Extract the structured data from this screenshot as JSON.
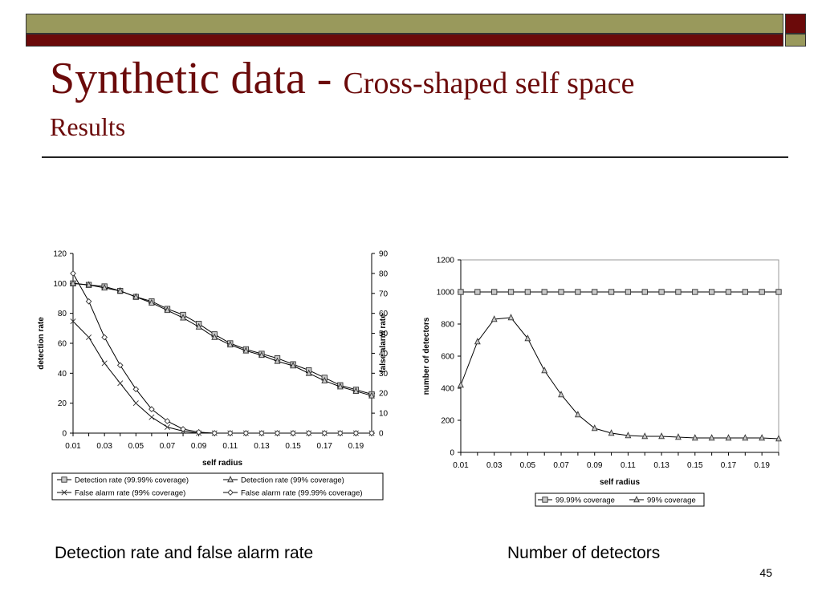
{
  "slide": {
    "title_main": "Synthetic data - ",
    "title_sub": "Cross-shaped self space",
    "subtitle": "Results",
    "caption_left": "Detection rate and false alarm rate",
    "caption_right": "Number of detectors",
    "page_number": "45",
    "colors": {
      "title": "#6b0a0a",
      "olive": "#99995c",
      "maroon": "#6b0a0a"
    }
  },
  "chart_data": [
    {
      "type": "line",
      "xlabel": "self radius",
      "ylabel": "detection rate",
      "y2label": "false alarm rate",
      "x": [
        0.01,
        0.02,
        0.03,
        0.04,
        0.05,
        0.06,
        0.07,
        0.08,
        0.09,
        0.1,
        0.11,
        0.12,
        0.13,
        0.14,
        0.15,
        0.16,
        0.17,
        0.18,
        0.19,
        0.2
      ],
      "xticks": [
        "0.01",
        "0.03",
        "0.05",
        "0.07",
        "0.09",
        "0.11",
        "0.13",
        "0.15",
        "0.17",
        "0.19"
      ],
      "ylim": [
        0,
        120
      ],
      "yticks": [
        0,
        20,
        40,
        60,
        80,
        100,
        120
      ],
      "y2lim": [
        0,
        90
      ],
      "y2ticks": [
        0,
        10,
        20,
        30,
        40,
        50,
        60,
        70,
        80,
        90
      ],
      "grid": false,
      "legend_position": "bottom",
      "series": [
        {
          "name": "Detection rate (99.99% coverage)",
          "axis": "left",
          "marker": "square",
          "values": [
            100,
            99,
            98,
            95,
            91,
            88,
            83,
            79,
            73,
            66,
            60,
            56,
            53,
            50,
            46,
            42,
            37,
            32,
            29,
            26
          ]
        },
        {
          "name": "Detection rate (99% coverage)",
          "axis": "left",
          "marker": "triangle",
          "values": [
            100,
            99,
            97,
            95,
            91,
            87,
            82,
            77,
            71,
            64,
            59,
            55,
            52,
            48,
            45,
            40,
            35,
            31,
            28,
            25
          ]
        },
        {
          "name": "False alarm rate (99% coverage)",
          "axis": "right",
          "marker": "x",
          "values": [
            56,
            48,
            35,
            25,
            15,
            8,
            3,
            1,
            0,
            0,
            0,
            0,
            0,
            0,
            0,
            0,
            0,
            0,
            0,
            0
          ]
        },
        {
          "name": "False alarm rate (99.99% coverage)",
          "axis": "right",
          "marker": "diamond",
          "values": [
            80,
            66,
            48,
            34,
            22,
            12,
            6,
            2,
            0.5,
            0,
            0,
            0,
            0,
            0,
            0,
            0,
            0,
            0,
            0,
            0
          ]
        }
      ]
    },
    {
      "type": "line",
      "xlabel": "self radius",
      "ylabel": "number of detectors",
      "x": [
        0.01,
        0.02,
        0.03,
        0.04,
        0.05,
        0.06,
        0.07,
        0.08,
        0.09,
        0.1,
        0.11,
        0.12,
        0.13,
        0.14,
        0.15,
        0.16,
        0.17,
        0.18,
        0.19,
        0.2
      ],
      "xticks": [
        "0.01",
        "0.03",
        "0.05",
        "0.07",
        "0.09",
        "0.11",
        "0.13",
        "0.15",
        "0.17",
        "0.19"
      ],
      "ylim": [
        0,
        1200
      ],
      "yticks": [
        0,
        200,
        400,
        600,
        800,
        1000,
        1200
      ],
      "grid": false,
      "legend_position": "bottom-right",
      "series": [
        {
          "name": "99.99% coverage",
          "marker": "square",
          "values": [
            1000,
            1000,
            1000,
            1000,
            1000,
            1000,
            1000,
            1000,
            1000,
            1000,
            1000,
            1000,
            1000,
            1000,
            1000,
            1000,
            1000,
            1000,
            1000,
            1000
          ]
        },
        {
          "name": "99% coverage",
          "marker": "triangle",
          "values": [
            420,
            690,
            830,
            840,
            710,
            510,
            360,
            235,
            150,
            120,
            105,
            100,
            100,
            95,
            90,
            90,
            90,
            90,
            90,
            85
          ]
        }
      ]
    }
  ]
}
